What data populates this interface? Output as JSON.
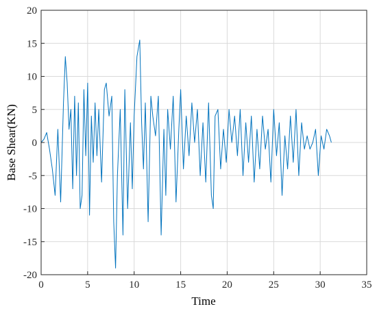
{
  "chart_data": {
    "type": "line",
    "xlabel": "Time",
    "ylabel": "Base Shear(KN)",
    "xlim": [
      0,
      35
    ],
    "ylim": [
      -20,
      20
    ],
    "xticks": [
      0,
      5,
      10,
      15,
      20,
      25,
      30,
      35
    ],
    "yticks": [
      -20,
      -15,
      -10,
      -5,
      0,
      5,
      10,
      15,
      20
    ],
    "xtick_labels": [
      "0",
      "5",
      "10",
      "15",
      "20",
      "25",
      "30",
      "35"
    ],
    "ytick_labels": [
      "-20",
      "-15",
      "-10",
      "-5",
      "0",
      "5",
      "10",
      "15",
      "20"
    ],
    "grid": true,
    "legend": "none",
    "series_color": "#0072BD",
    "series": [
      {
        "x": [
          0,
          0.3,
          0.6,
          0.9,
          1.2,
          1.5,
          1.8,
          2.1,
          2.4,
          2.6,
          2.8,
          3.0,
          3.2,
          3.4,
          3.6,
          3.8,
          4.0,
          4.2,
          4.4,
          4.6,
          4.8,
          5.0,
          5.2,
          5.4,
          5.6,
          5.8,
          6.0,
          6.2,
          6.5,
          6.8,
          7.0,
          7.3,
          7.6,
          7.8,
          8.0,
          8.2,
          8.5,
          8.8,
          9.0,
          9.3,
          9.6,
          9.8,
          10.0,
          10.3,
          10.6,
          10.8,
          11.0,
          11.2,
          11.5,
          11.8,
          12.0,
          12.3,
          12.6,
          12.9,
          13.2,
          13.4,
          13.6,
          13.9,
          14.2,
          14.5,
          14.8,
          15.0,
          15.3,
          15.6,
          15.9,
          16.2,
          16.5,
          16.8,
          17.1,
          17.4,
          17.7,
          18.0,
          18.3,
          18.5,
          18.7,
          19.0,
          19.3,
          19.6,
          19.9,
          20.2,
          20.5,
          20.8,
          21.1,
          21.4,
          21.7,
          22.0,
          22.3,
          22.6,
          22.9,
          23.2,
          23.5,
          23.8,
          24.1,
          24.4,
          24.7,
          25.0,
          25.3,
          25.6,
          25.9,
          26.2,
          26.5,
          26.8,
          27.1,
          27.4,
          27.7,
          28.0,
          28.3,
          28.6,
          28.9,
          29.2,
          29.5,
          29.8,
          30.1,
          30.4,
          30.7,
          31.0,
          31.2
        ],
        "y": [
          0,
          0.5,
          1.5,
          -1,
          -4,
          -8,
          2,
          -9,
          6,
          13,
          9,
          2,
          5,
          -7,
          7,
          -5,
          6,
          -10,
          -8,
          8,
          -2,
          9,
          -11,
          4,
          -3,
          6,
          -2,
          5,
          -6,
          8,
          9,
          4,
          7,
          -12,
          -19,
          -5,
          5,
          -14,
          8,
          -10,
          3,
          -7,
          4,
          13,
          15.5,
          3,
          -4,
          6,
          -12,
          7,
          4,
          1,
          7,
          -14,
          2,
          -8,
          5,
          -1,
          7,
          -9,
          2,
          8,
          -4,
          4,
          -2,
          6,
          0,
          5,
          -5,
          3,
          -6,
          6,
          -8,
          -10,
          4,
          5,
          -4,
          2,
          -3,
          5,
          0,
          4,
          -2,
          5,
          -5,
          3,
          -3,
          4,
          -6,
          2,
          -4,
          4,
          -1,
          2,
          -6,
          5,
          -2,
          3,
          -8,
          1,
          -4,
          4,
          -3,
          5,
          -5,
          3,
          -1,
          1,
          -1,
          0,
          2,
          -5,
          1,
          -1,
          2,
          1,
          0
        ]
      }
    ]
  }
}
